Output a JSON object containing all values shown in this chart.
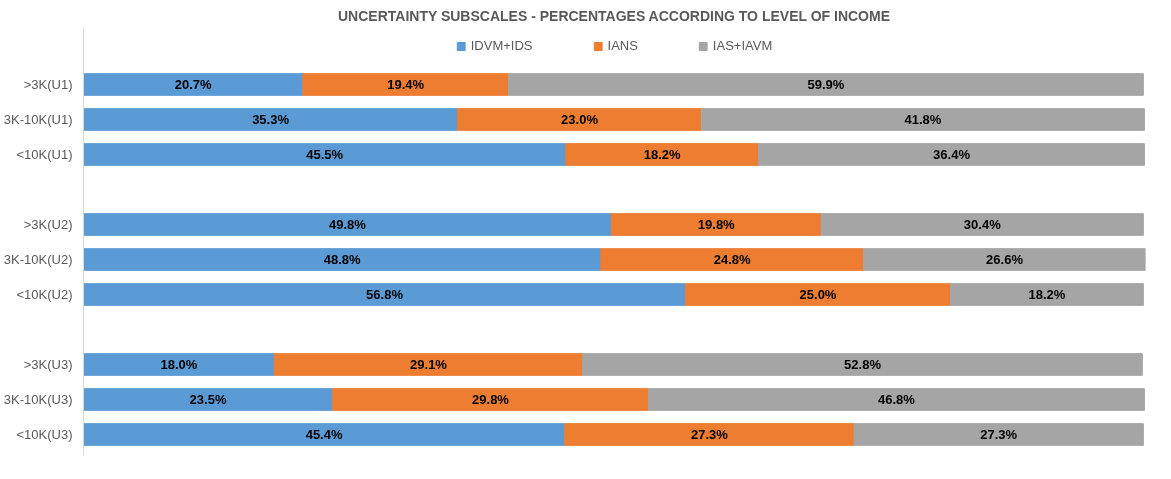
{
  "chart_data": {
    "type": "bar",
    "orientation": "horizontal",
    "stacked": true,
    "title": "UNCERTAINTY SUBSCALES - PERCENTAGES ACCORDING TO LEVEL OF INCOME",
    "categories": [
      ">3K(U1)",
      "3K-10K(U1)",
      "<10K(U1)",
      null,
      ">3K(U2)",
      "3K-10K(U2)",
      "<10K(U2)",
      null,
      ">3K(U3)",
      "3K-10K(U3)",
      "<10K(U3)"
    ],
    "series": [
      {
        "name": "IDVM+IDS",
        "color": "#5b9bd5",
        "values": [
          20.7,
          35.3,
          45.5,
          null,
          49.8,
          48.8,
          56.8,
          null,
          18.0,
          23.5,
          45.4
        ],
        "value_labels": [
          "20.7%",
          "35.3%",
          "45.5%",
          null,
          "49.8%",
          "48.8%",
          "56.8%",
          null,
          "18.0%",
          "23.5%",
          "45.4%"
        ]
      },
      {
        "name": "IANS",
        "color": "#ed7d31",
        "values": [
          19.4,
          23.0,
          18.2,
          null,
          19.8,
          24.8,
          25.0,
          null,
          29.1,
          29.8,
          27.3
        ],
        "value_labels": [
          "19.4%",
          "23.0%",
          "18.2%",
          null,
          "19.8%",
          "24.8%",
          "25.0%",
          null,
          "29.1%",
          "29.8%",
          "27.3%"
        ]
      },
      {
        "name": "IAS+IAVM",
        "color": "#a5a5a5",
        "values": [
          59.9,
          41.8,
          36.4,
          null,
          30.4,
          26.6,
          18.2,
          null,
          52.8,
          46.8,
          27.3
        ],
        "value_labels": [
          "59.9%",
          "41.8%",
          "36.4%",
          null,
          "30.4%",
          "26.6%",
          "18.2%",
          null,
          "52.8%",
          "46.8%",
          "27.3%"
        ]
      }
    ],
    "tick_labels": "y",
    "legend": "top"
  }
}
